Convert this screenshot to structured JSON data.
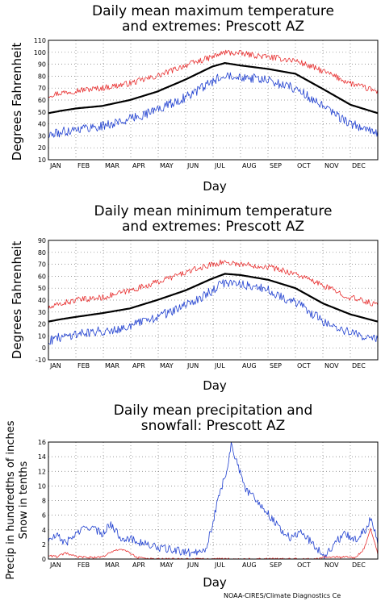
{
  "credit": "NOAA-CIRES/Climate Diagnostics Ce",
  "colors": {
    "mean": "#000000",
    "high": "#e83030",
    "low": "#2040d0"
  },
  "chart_data": [
    {
      "type": "line",
      "title_lines": [
        "Daily mean maximum temperature",
        "and extremes: Prescott AZ"
      ],
      "xlabel": "Day",
      "ylabel": "Degrees Fahrenheit",
      "x_ticks": [
        "JAN",
        "FEB",
        "MAR",
        "APR",
        "MAY",
        "JUN",
        "JUL",
        "AUG",
        "SEP",
        "OCT",
        "NOV",
        "DEC"
      ],
      "y_ticks": [
        "10",
        "20",
        "30",
        "40",
        "50",
        "60",
        "70",
        "80",
        "90",
        "100",
        "110"
      ],
      "ylim": [
        10,
        110
      ],
      "grid": true,
      "x_anchor_days": [
        1,
        15,
        32,
        60,
        91,
        121,
        152,
        182,
        196,
        213,
        244,
        274,
        305,
        335,
        365
      ],
      "series": [
        {
          "role": "high",
          "values": [
            64,
            66,
            68,
            70,
            74,
            80,
            89,
            96,
            100,
            99,
            96,
            93,
            84,
            74,
            67
          ]
        },
        {
          "role": "mean",
          "values": [
            49,
            51,
            53,
            55,
            60,
            67,
            77,
            88,
            91,
            89,
            86,
            82,
            69,
            56,
            49
          ]
        },
        {
          "role": "low",
          "values": [
            30,
            33,
            36,
            38,
            44,
            52,
            62,
            75,
            82,
            80,
            76,
            70,
            54,
            40,
            32
          ]
        }
      ]
    },
    {
      "type": "line",
      "title_lines": [
        "Daily mean minimum temperature",
        "and extremes: Prescott AZ"
      ],
      "xlabel": "Day",
      "ylabel": "Degrees Fahrenheit",
      "x_ticks": [
        "JAN",
        "FEB",
        "MAR",
        "APR",
        "MAY",
        "JUN",
        "JUL",
        "AUG",
        "SEP",
        "OCT",
        "NOV",
        "DEC"
      ],
      "y_ticks": [
        "-10",
        "0",
        "10",
        "20",
        "30",
        "40",
        "50",
        "60",
        "70",
        "80",
        "90"
      ],
      "ylim": [
        -10,
        90
      ],
      "grid": true,
      "x_anchor_days": [
        1,
        15,
        32,
        60,
        91,
        121,
        152,
        182,
        196,
        213,
        244,
        274,
        305,
        335,
        365
      ],
      "series": [
        {
          "role": "high",
          "values": [
            33,
            37,
            40,
            42,
            48,
            55,
            63,
            70,
            72,
            70,
            68,
            62,
            52,
            42,
            36
          ]
        },
        {
          "role": "mean",
          "values": [
            22,
            24,
            26,
            29,
            33,
            40,
            48,
            58,
            62,
            61,
            57,
            50,
            37,
            28,
            22
          ]
        },
        {
          "role": "low",
          "values": [
            6,
            9,
            12,
            14,
            18,
            26,
            35,
            48,
            55,
            54,
            48,
            38,
            22,
            12,
            8
          ]
        }
      ]
    },
    {
      "type": "line",
      "title_lines": [
        "Daily mean precipitation and",
        "snowfall: Prescott AZ"
      ],
      "xlabel": "Day",
      "ylabel_lines": [
        "Precip in hundredths of inches",
        "Snow in tenths"
      ],
      "x_ticks": [
        "JAN",
        "FEB",
        "MAR",
        "APR",
        "MAY",
        "JUN",
        "JUL",
        "AUG",
        "SEP",
        "OCT",
        "NOV",
        "DEC"
      ],
      "y_ticks": [
        "0",
        "2",
        "4",
        "6",
        "8",
        "10",
        "12",
        "14",
        "16"
      ],
      "ylim": [
        0,
        16
      ],
      "grid": true,
      "series": [
        {
          "role": "precip",
          "x_days": [
            1,
            10,
            20,
            32,
            45,
            60,
            70,
            80,
            90,
            105,
            120,
            140,
            160,
            175,
            182,
            190,
            198,
            203,
            210,
            218,
            225,
            235,
            245,
            255,
            262,
            270,
            280,
            290,
            300,
            305,
            312,
            320,
            330,
            340,
            350,
            357,
            362,
            365
          ],
          "values": [
            2.5,
            3.2,
            2.2,
            3.5,
            4.5,
            3.5,
            4.8,
            3.0,
            2.8,
            2.2,
            1.6,
            1.2,
            0.8,
            1.5,
            4.5,
            9.0,
            12.0,
            15.8,
            13.0,
            9.5,
            9.0,
            7.5,
            6.0,
            4.5,
            3.5,
            2.8,
            3.8,
            2.5,
            1.2,
            0.5,
            1.2,
            2.5,
            3.5,
            2.6,
            3.8,
            5.4,
            4.0,
            2.5
          ]
        },
        {
          "role": "snow",
          "x_days": [
            1,
            10,
            20,
            32,
            50,
            60,
            72,
            80,
            88,
            100,
            115,
            250,
            290,
            300,
            306,
            340,
            350,
            357,
            362,
            365
          ],
          "values": [
            0.5,
            0.3,
            0.8,
            0.3,
            0.2,
            0.3,
            1.0,
            1.4,
            1.0,
            0.2,
            0.0,
            0.0,
            0.0,
            0.0,
            0.3,
            0.2,
            1.4,
            4.2,
            2.2,
            0.6
          ]
        }
      ]
    }
  ]
}
